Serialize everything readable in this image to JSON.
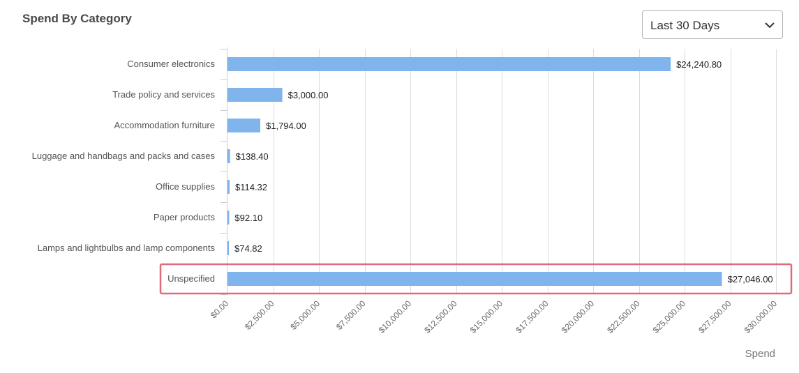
{
  "card": {
    "title": "Spend By Category"
  },
  "range_select": {
    "selected": "Last 30 Days",
    "icon": "chevron-down-icon"
  },
  "chart_data": {
    "type": "bar",
    "orientation": "horizontal",
    "title": "",
    "xlabel": "Spend",
    "ylabel": "",
    "xlim": [
      0,
      30000
    ],
    "grid": true,
    "x_ticks": [
      0,
      2500,
      5000,
      7500,
      10000,
      12500,
      15000,
      17500,
      20000,
      22500,
      25000,
      27500,
      30000
    ],
    "x_tick_labels": [
      "$0.00",
      "$2,500.00",
      "$5,000.00",
      "$7,500.00",
      "$10,000.00",
      "$12,500.00",
      "$15,000.00",
      "$17,500.00",
      "$20,000.00",
      "$22,500.00",
      "$25,000.00",
      "$27,500.00",
      "$30,000.00"
    ],
    "categories": [
      "Consumer electronics",
      "Trade policy and services",
      "Accommodation furniture",
      "Luggage and handbags and packs and cases",
      "Office supplies",
      "Paper products",
      "Lamps and lightbulbs and lamp components",
      "Unspecified"
    ],
    "values": [
      24240.8,
      3000.0,
      1794.0,
      138.4,
      114.32,
      92.1,
      74.82,
      27046.0
    ],
    "value_labels": [
      "$24,240.80",
      "$3,000.00",
      "$1,794.00",
      "$138.40",
      "$114.32",
      "$92.10",
      "$74.82",
      "$27,046.00"
    ],
    "bar_color": "#7fb5ec",
    "highlighted_category": "Unspecified",
    "highlight_color": "#e06b78"
  }
}
